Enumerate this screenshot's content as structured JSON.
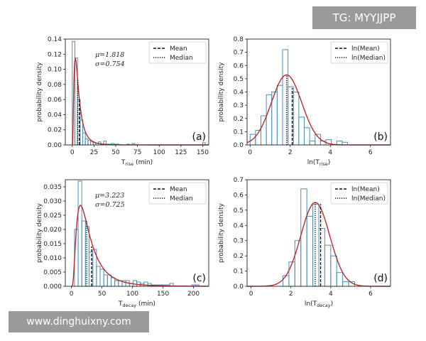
{
  "watermarks": {
    "top": "TG: MYYJJPP",
    "bottom": "www.dinghuixny.com"
  },
  "colors": {
    "hist": "#4a90b8",
    "fit": "#c0292b",
    "axis": "#222222"
  },
  "chart_data": [
    {
      "id": "a",
      "type": "bar",
      "panel_label": "(a)",
      "xlabel_main": "T",
      "xlabel_sub": "rise",
      "xlabel_suffix": " (min)",
      "ylabel": "probability density",
      "xlim": [
        -8,
        157
      ],
      "ylim": [
        0,
        0.14
      ],
      "xticks": [
        0,
        25,
        50,
        75,
        100,
        125,
        150
      ],
      "yticks": [
        0.0,
        0.02,
        0.04,
        0.06,
        0.08,
        0.1,
        0.12,
        0.14
      ],
      "ydec": 2,
      "bin_edges": [
        0,
        3,
        6,
        9,
        12,
        15,
        18,
        21,
        24,
        27,
        30,
        33,
        36,
        39,
        42,
        45,
        48,
        51,
        54,
        57,
        60,
        63,
        66,
        69,
        72,
        75,
        150,
        153
      ],
      "hist": [
        0.137,
        0.115,
        0.06,
        0.033,
        0.016,
        0.008,
        0.006,
        0.004,
        0.003,
        0.002,
        0.004,
        0.001,
        0.005,
        0.001,
        0.001,
        0.002,
        0.001,
        0.001,
        0.0,
        0.0,
        0.0,
        0.001,
        0.0,
        0.002,
        0.0,
        0.0,
        0.003
      ],
      "fit": {
        "dist": "lognormal",
        "mu": 1.818,
        "sigma": 0.754,
        "scale": 1.0
      },
      "mean_x": 8.2,
      "median_x": 6.2,
      "mean_top": 0.06,
      "median_top": 0.088,
      "stats": [
        "μ=1.818",
        "σ=0.754"
      ],
      "legend": [
        "Mean",
        "Median"
      ]
    },
    {
      "id": "b",
      "type": "bar",
      "panel_label": "(b)",
      "xlabel_main": "ln(T",
      "xlabel_sub": "rise",
      "xlabel_suffix": ")",
      "ylabel": "probability density",
      "xlim": [
        -0.15,
        7.0
      ],
      "ylim": [
        0,
        0.8
      ],
      "xticks": [
        0,
        2,
        4,
        6
      ],
      "yticks": [
        0.0,
        0.1,
        0.2,
        0.3,
        0.4,
        0.5,
        0.6,
        0.7,
        0.8
      ],
      "ydec": 1,
      "bin_edges": [
        0.0,
        0.27,
        0.54,
        0.81,
        1.08,
        1.35,
        1.62,
        1.89,
        2.16,
        2.43,
        2.7,
        2.97,
        3.24,
        3.51,
        3.78,
        4.05,
        4.32,
        4.59,
        4.86
      ],
      "hist": [
        0.08,
        0.11,
        0.22,
        0.38,
        0.4,
        0.45,
        0.72,
        0.44,
        0.4,
        0.21,
        0.13,
        0.03,
        0.08,
        0.03,
        0.04,
        0.0,
        0.03,
        0.02
      ],
      "fit": {
        "dist": "normal",
        "mu": 1.818,
        "sigma": 0.754,
        "scale": 1.0
      },
      "mean_x": 2.1,
      "median_x": 1.82,
      "mean_top": 0.43,
      "median_top": 0.53,
      "legend": [
        "ln(Mean)",
        "ln(Median)"
      ]
    },
    {
      "id": "c",
      "type": "bar",
      "panel_label": "(c)",
      "xlabel_main": "T",
      "xlabel_sub": "decay",
      "xlabel_suffix": " (min)",
      "ylabel": "probability density",
      "xlim": [
        -10,
        225
      ],
      "ylim": [
        0,
        0.0375
      ],
      "xticks": [
        0,
        50,
        100,
        150,
        200
      ],
      "yticks": [
        0.0,
        0.005,
        0.01,
        0.015,
        0.02,
        0.025,
        0.03,
        0.035
      ],
      "ydec": 3,
      "bin_edges": [
        5,
        11,
        17,
        23,
        29,
        35,
        41,
        47,
        53,
        59,
        65,
        71,
        77,
        83,
        89,
        95,
        101,
        107,
        113,
        119,
        125,
        131,
        137,
        143,
        149,
        155,
        161,
        167,
        173,
        179,
        185,
        191,
        197,
        203,
        209,
        215
      ],
      "hist": [
        0.02,
        0.037,
        0.023,
        0.021,
        0.012,
        0.013,
        0.007,
        0.006,
        0.004,
        0.004,
        0.003,
        0.002,
        0.002,
        0.002,
        0.002,
        0.001,
        0.002,
        0.0015,
        0.001,
        0.0015,
        0.001,
        0.0005,
        0.0005,
        0.0005,
        0.0005,
        0.0005,
        0.001,
        0.0,
        0.0,
        0.0,
        0.0,
        0.0,
        0.0005,
        0.0005,
        0.0
      ],
      "fit": {
        "dist": "lognormal",
        "mu": 3.223,
        "sigma": 0.725,
        "scale": 1.0
      },
      "mean_x": 33,
      "median_x": 25,
      "mean_top": 0.014,
      "median_top": 0.023,
      "stats": [
        "μ=3.223",
        "σ=0.725"
      ],
      "legend": [
        "Mean",
        "Median"
      ]
    },
    {
      "id": "d",
      "type": "bar",
      "panel_label": "(d)",
      "xlabel_main": "ln(T",
      "xlabel_sub": "decay",
      "xlabel_suffix": ")",
      "ylabel": "probability density",
      "xlim": [
        -0.2,
        7.0
      ],
      "ylim": [
        0,
        0.7
      ],
      "xticks": [
        0,
        2,
        4,
        6
      ],
      "yticks": [
        0.0,
        0.1,
        0.2,
        0.3,
        0.4,
        0.5,
        0.6,
        0.7
      ],
      "ydec": 1,
      "bin_edges": [
        1.6,
        1.9,
        2.2,
        2.5,
        2.8,
        3.1,
        3.4,
        3.7,
        4.0,
        4.3,
        4.6,
        4.9,
        5.2,
        5.5
      ],
      "hist": [
        0.07,
        0.16,
        0.3,
        0.64,
        0.46,
        0.54,
        0.38,
        0.27,
        0.2,
        0.09,
        0.03,
        0.03,
        0.0
      ],
      "fit": {
        "dist": "normal",
        "mu": 3.223,
        "sigma": 0.725,
        "scale": 1.0
      },
      "mean_x": 3.49,
      "median_x": 3.22,
      "mean_top": 0.54,
      "median_top": 0.55,
      "legend": [
        "ln(Mean)",
        "ln(Median)"
      ]
    }
  ]
}
